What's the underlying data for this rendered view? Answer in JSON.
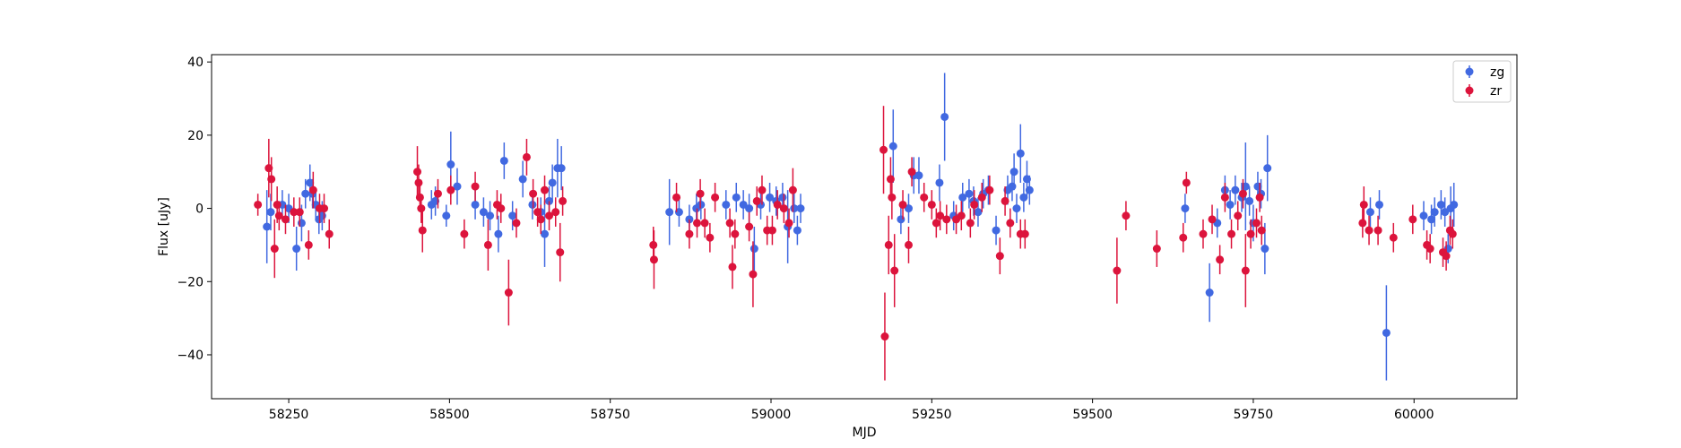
{
  "chart_data": {
    "type": "scatter",
    "title": "",
    "xlabel": "MJD",
    "ylabel": "Flux [uJy]",
    "xlim": [
      58130,
      60160
    ],
    "ylim": [
      -52,
      42
    ],
    "xticks": [
      58250,
      58500,
      58750,
      59000,
      59250,
      59500,
      59750,
      60000
    ],
    "yticks": [
      -40,
      -20,
      0,
      20,
      40
    ],
    "grid": false,
    "legend": "top-right",
    "series": [
      {
        "name": "zg",
        "color": "#4169e1",
        "points": [
          [
            58216,
            -5,
            10
          ],
          [
            58222,
            -1,
            5
          ],
          [
            58240,
            1,
            4
          ],
          [
            58250,
            0,
            4
          ],
          [
            58262,
            -11,
            6
          ],
          [
            58270,
            -4,
            5
          ],
          [
            58276,
            4,
            4
          ],
          [
            58283,
            7,
            5
          ],
          [
            58287,
            4,
            4
          ],
          [
            58292,
            1,
            4
          ],
          [
            58297,
            -3,
            4
          ],
          [
            58302,
            -2,
            4
          ],
          [
            58472,
            1,
            4
          ],
          [
            58478,
            2,
            4
          ],
          [
            58495,
            -2,
            3
          ],
          [
            58502,
            12,
            9
          ],
          [
            58512,
            6,
            5
          ],
          [
            58540,
            1,
            4
          ],
          [
            58553,
            -1,
            4
          ],
          [
            58563,
            -2,
            4
          ],
          [
            58576,
            -7,
            5
          ],
          [
            58585,
            13,
            5
          ],
          [
            58598,
            -2,
            4
          ],
          [
            58614,
            8,
            5
          ],
          [
            58629,
            1,
            4
          ],
          [
            58642,
            -1,
            4
          ],
          [
            58648,
            -7,
            9
          ],
          [
            58655,
            2,
            4
          ],
          [
            58660,
            7,
            5
          ],
          [
            58668,
            11,
            8
          ],
          [
            58674,
            11,
            6
          ],
          [
            58842,
            -1,
            9
          ],
          [
            58857,
            -1,
            4
          ],
          [
            58873,
            -3,
            4
          ],
          [
            58884,
            0,
            4
          ],
          [
            58891,
            1,
            4
          ],
          [
            58930,
            1,
            4
          ],
          [
            58946,
            3,
            4
          ],
          [
            58957,
            1,
            4
          ],
          [
            58966,
            0,
            4
          ],
          [
            58974,
            -11,
            6
          ],
          [
            58984,
            1,
            4
          ],
          [
            58998,
            3,
            4
          ],
          [
            59008,
            2,
            4
          ],
          [
            59018,
            3,
            4
          ],
          [
            59026,
            -5,
            10
          ],
          [
            59036,
            0,
            4
          ],
          [
            59041,
            -6,
            4
          ],
          [
            59046,
            0,
            4
          ],
          [
            59190,
            17,
            10
          ],
          [
            59202,
            -3,
            4
          ],
          [
            59214,
            0,
            4
          ],
          [
            59222,
            9,
            5
          ],
          [
            59230,
            9,
            5
          ],
          [
            59262,
            7,
            5
          ],
          [
            59270,
            25,
            12
          ],
          [
            59284,
            -2,
            4
          ],
          [
            59298,
            3,
            4
          ],
          [
            59308,
            4,
            4
          ],
          [
            59315,
            2,
            4
          ],
          [
            59322,
            -1,
            4
          ],
          [
            59330,
            4,
            4
          ],
          [
            59338,
            5,
            4
          ],
          [
            59350,
            -6,
            4
          ],
          [
            59368,
            5,
            4
          ],
          [
            59375,
            6,
            4
          ],
          [
            59378,
            10,
            5
          ],
          [
            59382,
            0,
            4
          ],
          [
            59388,
            15,
            8
          ],
          [
            59393,
            3,
            4
          ],
          [
            59398,
            8,
            5
          ],
          [
            59402,
            5,
            4
          ],
          [
            59644,
            0,
            4
          ],
          [
            59682,
            -23,
            8
          ],
          [
            59694,
            -4,
            4
          ],
          [
            59706,
            5,
            4
          ],
          [
            59714,
            1,
            4
          ],
          [
            59722,
            5,
            4
          ],
          [
            59732,
            3,
            4
          ],
          [
            59738,
            6,
            12
          ],
          [
            59744,
            2,
            4
          ],
          [
            59750,
            -4,
            5
          ],
          [
            59757,
            6,
            4
          ],
          [
            59762,
            4,
            4
          ],
          [
            59768,
            -11,
            7
          ],
          [
            59772,
            11,
            9
          ],
          [
            59932,
            -1,
            4
          ],
          [
            59946,
            1,
            4
          ],
          [
            59957,
            -34,
            13
          ],
          [
            60015,
            -2,
            4
          ],
          [
            60027,
            -3,
            4
          ],
          [
            60032,
            -1,
            4
          ],
          [
            60042,
            1,
            4
          ],
          [
            60048,
            -1,
            4
          ],
          [
            60053,
            -11,
            4
          ],
          [
            60057,
            0,
            6
          ],
          [
            60062,
            1,
            6
          ]
        ]
      },
      {
        "name": "zr",
        "color": "#dc143c",
        "points": [
          [
            58202,
            1,
            3
          ],
          [
            58219,
            11,
            8
          ],
          [
            58223,
            8,
            6
          ],
          [
            58228,
            -11,
            8
          ],
          [
            58232,
            1,
            5
          ],
          [
            58235,
            -2,
            4
          ],
          [
            58245,
            -3,
            4
          ],
          [
            58258,
            -1,
            4
          ],
          [
            58267,
            -1,
            4
          ],
          [
            58281,
            -10,
            4
          ],
          [
            58288,
            5,
            5
          ],
          [
            58298,
            0,
            4
          ],
          [
            58305,
            0,
            4
          ],
          [
            58313,
            -7,
            4
          ],
          [
            58450,
            10,
            7
          ],
          [
            58452,
            7,
            5
          ],
          [
            58454,
            3,
            4
          ],
          [
            58456,
            0,
            4
          ],
          [
            58458,
            -6,
            6
          ],
          [
            58482,
            4,
            4
          ],
          [
            58502,
            5,
            4
          ],
          [
            58523,
            -7,
            4
          ],
          [
            58540,
            6,
            4
          ],
          [
            58560,
            -10,
            7
          ],
          [
            58574,
            1,
            4
          ],
          [
            58580,
            0,
            4
          ],
          [
            58592,
            -23,
            9
          ],
          [
            58604,
            -4,
            4
          ],
          [
            58620,
            14,
            5
          ],
          [
            58630,
            4,
            4
          ],
          [
            58637,
            -1,
            4
          ],
          [
            58642,
            -3,
            4
          ],
          [
            58648,
            5,
            4
          ],
          [
            58655,
            -2,
            4
          ],
          [
            58665,
            -1,
            4
          ],
          [
            58672,
            -12,
            8
          ],
          [
            58676,
            2,
            4
          ],
          [
            58817,
            -10,
            5
          ],
          [
            58818,
            -14,
            8
          ],
          [
            58853,
            3,
            4
          ],
          [
            58873,
            -7,
            4
          ],
          [
            58885,
            -4,
            4
          ],
          [
            58890,
            4,
            4
          ],
          [
            58897,
            -4,
            4
          ],
          [
            58905,
            -8,
            4
          ],
          [
            58913,
            3,
            4
          ],
          [
            58936,
            -4,
            4
          ],
          [
            58940,
            -16,
            6
          ],
          [
            58944,
            -7,
            4
          ],
          [
            58966,
            -5,
            4
          ],
          [
            58972,
            -18,
            9
          ],
          [
            58978,
            2,
            4
          ],
          [
            58986,
            5,
            4
          ],
          [
            58994,
            -6,
            4
          ],
          [
            59002,
            -6,
            4
          ],
          [
            59010,
            1,
            4
          ],
          [
            59020,
            0,
            4
          ],
          [
            59028,
            -4,
            4
          ],
          [
            59034,
            5,
            6
          ],
          [
            59175,
            16,
            12
          ],
          [
            59177,
            -35,
            12
          ],
          [
            59183,
            -10,
            8
          ],
          [
            59186,
            8,
            6
          ],
          [
            59188,
            3,
            6
          ],
          [
            59192,
            -17,
            10
          ],
          [
            59205,
            1,
            4
          ],
          [
            59214,
            -10,
            5
          ],
          [
            59219,
            10,
            4
          ],
          [
            59238,
            3,
            4
          ],
          [
            59250,
            1,
            4
          ],
          [
            59257,
            -4,
            4
          ],
          [
            59263,
            -2,
            4
          ],
          [
            59273,
            -3,
            4
          ],
          [
            59288,
            -3,
            4
          ],
          [
            59296,
            -2,
            4
          ],
          [
            59310,
            -4,
            4
          ],
          [
            59316,
            1,
            4
          ],
          [
            59328,
            3,
            4
          ],
          [
            59340,
            5,
            4
          ],
          [
            59356,
            -13,
            5
          ],
          [
            59364,
            2,
            4
          ],
          [
            59372,
            -4,
            4
          ],
          [
            59388,
            -7,
            4
          ],
          [
            59395,
            -7,
            4
          ],
          [
            59538,
            -17,
            9
          ],
          [
            59552,
            -2,
            4
          ],
          [
            59600,
            -11,
            5
          ],
          [
            59641,
            -8,
            4
          ],
          [
            59646,
            7,
            3
          ],
          [
            59672,
            -7,
            4
          ],
          [
            59686,
            -3,
            4
          ],
          [
            59698,
            -14,
            4
          ],
          [
            59706,
            3,
            4
          ],
          [
            59716,
            -7,
            4
          ],
          [
            59726,
            -2,
            4
          ],
          [
            59734,
            4,
            4
          ],
          [
            59738,
            -17,
            10
          ],
          [
            59746,
            -7,
            4
          ],
          [
            59755,
            -4,
            4
          ],
          [
            59760,
            3,
            4
          ],
          [
            59763,
            -6,
            4
          ],
          [
            59920,
            -4,
            4
          ],
          [
            59922,
            1,
            5
          ],
          [
            59930,
            -6,
            4
          ],
          [
            59944,
            -6,
            4
          ],
          [
            59968,
            -8,
            4
          ],
          [
            59998,
            -3,
            4
          ],
          [
            60020,
            -10,
            4
          ],
          [
            60025,
            -11,
            4
          ],
          [
            60045,
            -12,
            4
          ],
          [
            60050,
            -13,
            4
          ],
          [
            60056,
            -6,
            4
          ],
          [
            60060,
            -7,
            4
          ]
        ]
      }
    ]
  }
}
